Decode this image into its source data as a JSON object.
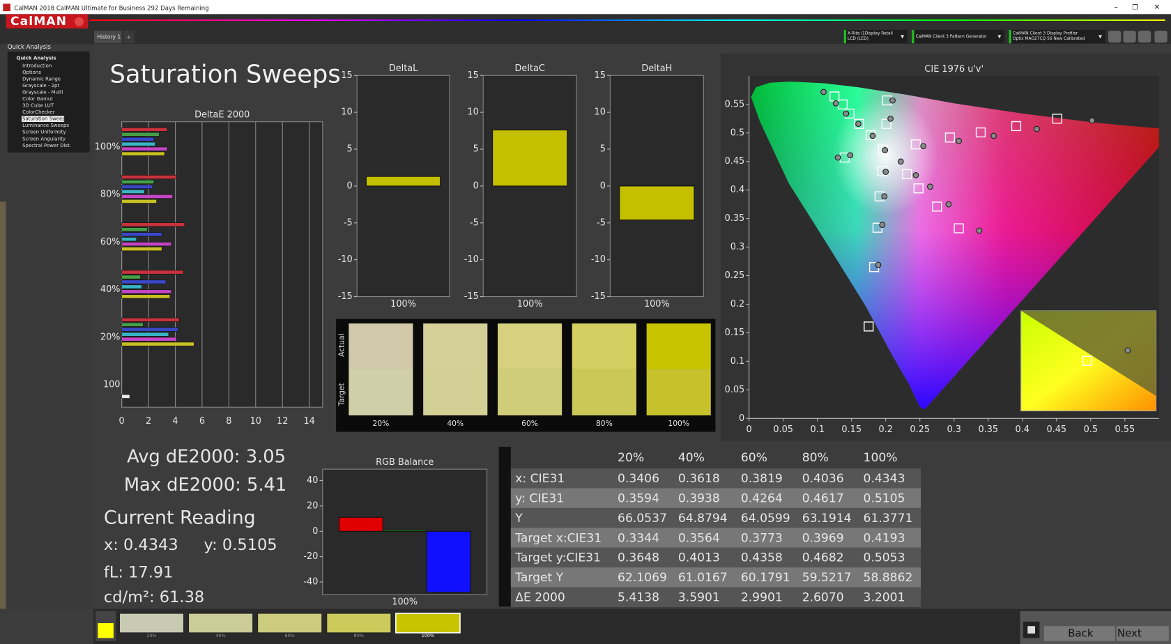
{
  "window": {
    "title": "CalMAN 2018 CalMAN Ultimate for Business 292 Days Remaining"
  },
  "header": {
    "logo": "CalMAN",
    "tab": "History 1",
    "devices": [
      [
        "X-Rite i1Display Retail",
        "LCD (LED)"
      ],
      [
        "CalMAN Client 3 Pattern Generator"
      ],
      [
        "CalMAN Client 3 Display Profiler",
        "Optix MAG27CQ 56 New Calibrated"
      ]
    ]
  },
  "sidebar": {
    "heading": "Quick Analysis",
    "group": "Quick Analysis",
    "items": [
      "Introduction",
      "Options",
      "Dynamic Range",
      "Grayscale - 2pt",
      "Grayscale - Multi",
      "Color Gamut",
      "3D Cube LUT",
      "ColorChecker",
      "Saturation Sweeps",
      "Luminance Sweeps",
      "Screen Uniformity",
      "Screen Angularity",
      "Spectral Power Dist."
    ],
    "selected": 8
  },
  "page_title": "Saturation Sweeps",
  "chart_data": [
    {
      "type": "hbar",
      "title": "DeltaE 2000",
      "categories": [
        "100%",
        "80%",
        "60%",
        "40%",
        "20%",
        "100"
      ],
      "series": [
        {
          "color": "#c8323c",
          "values": [
            3.4,
            4.1,
            4.7,
            4.6,
            4.3,
            null
          ]
        },
        {
          "color": "#46a046",
          "values": [
            2.8,
            2.4,
            1.9,
            1.4,
            1.6,
            null
          ]
        },
        {
          "color": "#3a48c8",
          "values": [
            2.4,
            2.3,
            3.0,
            3.3,
            4.2,
            null
          ]
        },
        {
          "color": "#38b4c4",
          "values": [
            2.5,
            1.7,
            1.1,
            1.5,
            3.5,
            null
          ]
        },
        {
          "color": "#c446c4",
          "values": [
            3.4,
            3.8,
            3.7,
            3.7,
            4.1,
            null
          ]
        },
        {
          "color": "#c8c024",
          "values": [
            3.2,
            2.6,
            3.0,
            3.6,
            5.4,
            null
          ]
        },
        {
          "color": "#e8e8e8",
          "values": [
            null,
            null,
            null,
            null,
            null,
            0.6
          ]
        }
      ],
      "xlim": [
        0,
        15
      ],
      "xticks": [
        0,
        2,
        4,
        6,
        8,
        10,
        12,
        14
      ],
      "grid": true
    },
    {
      "type": "bar",
      "title": "DeltaL",
      "categories": [
        "100%"
      ],
      "series": [
        {
          "color": "#c4c000",
          "values": [
            1.3
          ]
        }
      ],
      "ylim": [
        -15,
        15
      ],
      "yticks": [
        15,
        10,
        5,
        0,
        -5,
        -10,
        -15
      ],
      "grid": false
    },
    {
      "type": "bar",
      "title": "DeltaC",
      "categories": [
        "100%"
      ],
      "series": [
        {
          "color": "#c4c000",
          "values": [
            7.6
          ]
        }
      ],
      "ylim": [
        -15,
        15
      ],
      "yticks": [
        15,
        10,
        5,
        0,
        -5,
        -10,
        -15
      ],
      "grid": false
    },
    {
      "type": "bar",
      "title": "DeltaH",
      "categories": [
        "100%"
      ],
      "series": [
        {
          "color": "#c4c000",
          "values": [
            -4.6
          ]
        }
      ],
      "ylim": [
        -15,
        15
      ],
      "yticks": [
        15,
        10,
        5,
        0,
        -5,
        -10,
        -15
      ],
      "grid": false
    },
    {
      "type": "scatter",
      "title": "CIE 1976 u'v'",
      "series": [
        {
          "marker": "square",
          "color": "#ffffff",
          "x": [
            0.125,
            0.137,
            0.147,
            0.161,
            0.178,
            0.196,
            0.202,
            0.201,
            0.244,
            0.294,
            0.339,
            0.391,
            0.451,
            0.195,
            0.191,
            0.188,
            0.183,
            0.175,
            0.231,
            0.248,
            0.275,
            0.307,
            0.14
          ],
          "values": [
            0.564,
            0.55,
            0.534,
            0.516,
            0.496,
            0.471,
            0.557,
            0.516,
            0.48,
            0.492,
            0.501,
            0.512,
            0.525,
            0.433,
            0.389,
            0.334,
            0.265,
            0.161,
            0.428,
            0.403,
            0.371,
            0.333,
            0.457
          ]
        },
        {
          "marker": "circle",
          "color": "#8a8a8a",
          "x": [
            0.109,
            0.127,
            0.142,
            0.16,
            0.181,
            0.199,
            0.21,
            0.207,
            0.255,
            0.307,
            0.358,
            0.421,
            0.502,
            0.2,
            0.198,
            0.195,
            0.189,
            0.222,
            0.244,
            0.265,
            0.292,
            0.337,
            0.13,
            0.148
          ],
          "values": [
            0.572,
            0.552,
            0.534,
            0.516,
            0.495,
            0.47,
            0.557,
            0.525,
            0.477,
            0.486,
            0.495,
            0.507,
            0.522,
            0.432,
            0.389,
            0.339,
            0.269,
            0.45,
            0.426,
            0.406,
            0.375,
            0.329,
            0.457,
            0.461
          ]
        }
      ],
      "xlim": [
        0,
        0.6
      ],
      "ylim": [
        0,
        0.6
      ],
      "xticks": [
        0,
        0.05,
        0.1,
        0.15,
        0.2,
        0.25,
        0.3,
        0.35,
        0.4,
        0.45,
        0.5,
        0.55
      ],
      "yticks": [
        0,
        0.05,
        0.1,
        0.15,
        0.2,
        0.25,
        0.3,
        0.35,
        0.4,
        0.45,
        0.5,
        0.55
      ],
      "grid": false
    },
    {
      "type": "bar",
      "title": "RGB Balance",
      "categories": [
        "100%"
      ],
      "series": [
        {
          "color": "#e00000",
          "values": [
            11
          ]
        },
        {
          "color": "#10a020",
          "values": [
            1
          ]
        },
        {
          "color": "#1010ff",
          "values": [
            -48
          ]
        }
      ],
      "ylim": [
        -50,
        49
      ],
      "yticks": [
        40,
        20,
        0,
        -20,
        -40
      ],
      "grid": false
    }
  ],
  "swatches": {
    "actual_label": "Actual",
    "target_label": "Target",
    "labels": [
      "20%",
      "40%",
      "60%",
      "80%",
      "100%"
    ],
    "actual": [
      "#d2c8aa",
      "#d5cf98",
      "#d6d17e",
      "#d4cf60",
      "#c8c400"
    ],
    "target": [
      "#cfcfa8",
      "#d2d094",
      "#d0cd7a",
      "#ccc858",
      "#c5c22c"
    ]
  },
  "stats": {
    "avg": "Avg dE2000: 3.05",
    "max": "Max dE2000: 5.41",
    "current": "Current Reading",
    "x": "x: 0.4343",
    "y": "y: 0.5105",
    "fl": "fL: 17.91",
    "cd": "cd/m²: 61.38"
  },
  "table": {
    "columns": [
      "20%",
      "40%",
      "60%",
      "80%",
      "100%"
    ],
    "rows": [
      {
        "label": "x: CIE31",
        "cells": [
          "0.3406",
          "0.3618",
          "0.3819",
          "0.4036",
          "0.4343"
        ]
      },
      {
        "label": "y: CIE31",
        "cells": [
          "0.3594",
          "0.3938",
          "0.4264",
          "0.4617",
          "0.5105"
        ]
      },
      {
        "label": "Y",
        "cells": [
          "66.0537",
          "64.8794",
          "64.0599",
          "63.1914",
          "61.3771"
        ]
      },
      {
        "label": "Target x:CIE31",
        "cells": [
          "0.3344",
          "0.3564",
          "0.3773",
          "0.3969",
          "0.4193"
        ]
      },
      {
        "label": "Target y:CIE31",
        "cells": [
          "0.3648",
          "0.4013",
          "0.4358",
          "0.4682",
          "0.5053"
        ]
      },
      {
        "label": "Target Y",
        "cells": [
          "62.1069",
          "61.0167",
          "60.1791",
          "59.5217",
          "58.8862"
        ]
      },
      {
        "label": "ΔE 2000",
        "cells": [
          "5.4138",
          "3.5901",
          "2.9901",
          "2.6070",
          "3.2001"
        ]
      }
    ]
  },
  "footer": {
    "swatches": [
      "20%",
      "40%",
      "60%",
      "80%",
      "100%"
    ],
    "colors": [
      "#c9cab2",
      "#cccc98",
      "#cdcc7e",
      "#cbcb5c",
      "#c9c400"
    ],
    "back": "Back",
    "next": "Next"
  }
}
